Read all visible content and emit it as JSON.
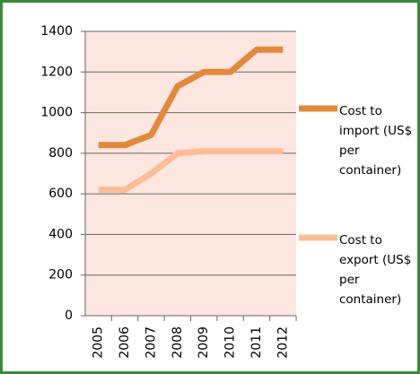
{
  "chart_data": {
    "type": "line",
    "categories": [
      "2005",
      "2006",
      "2007",
      "2008",
      "2009",
      "2010",
      "2011",
      "2012"
    ],
    "series": [
      {
        "name": "Cost to import (US$ per container)",
        "color": "#e28a3c",
        "values": [
          840,
          840,
          890,
          1130,
          1200,
          1200,
          1310,
          1310
        ]
      },
      {
        "name": "Cost to export (US$ per container)",
        "color": "#fbbd98",
        "values": [
          620,
          620,
          700,
          800,
          810,
          810,
          810,
          810
        ]
      }
    ],
    "ylim": [
      0,
      1400
    ],
    "yticks": [
      0,
      200,
      400,
      600,
      800,
      1000,
      1200,
      1400
    ],
    "grid": true,
    "legend": "right"
  }
}
